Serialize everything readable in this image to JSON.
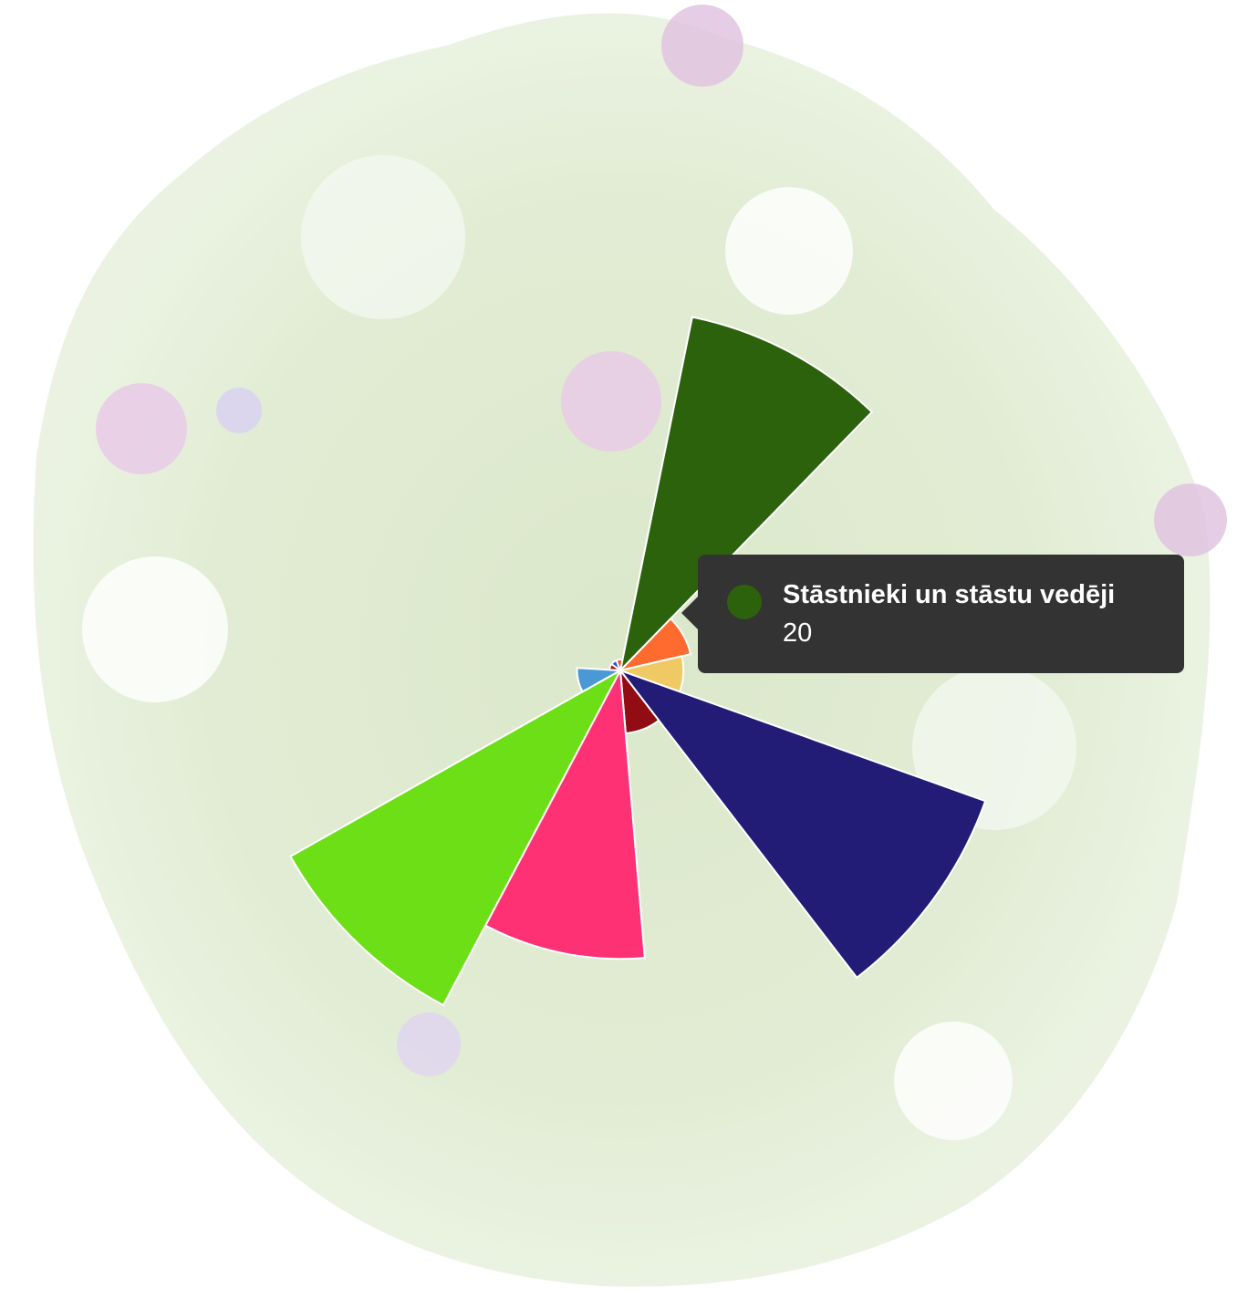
{
  "chart_data": {
    "type": "polar-area",
    "background": "botanical-wreath",
    "segments": [
      {
        "value": 20,
        "color": "#2d620d"
      },
      {
        "value": 4,
        "color": "#ff6a2e"
      },
      {
        "value": 3.5,
        "color": "#f0c864"
      },
      {
        "value": 21.5,
        "color": "#221c76"
      },
      {
        "value": 3.5,
        "color": "#920c14"
      },
      {
        "value": 16,
        "color": "#fe3175"
      },
      {
        "value": 21,
        "color": "#6ddf17"
      },
      {
        "value": 2.4,
        "color": "#4a98d4"
      },
      {
        "value": 0.6,
        "color": "#aa1111"
      },
      {
        "value": 0.6,
        "color": "#3355cc"
      },
      {
        "value": 0.6,
        "color": "#e84a1c"
      }
    ],
    "tooltip": {
      "label": "Stāstnieki un stāstu vedēji",
      "value": "20",
      "color": "#2d620d"
    }
  }
}
